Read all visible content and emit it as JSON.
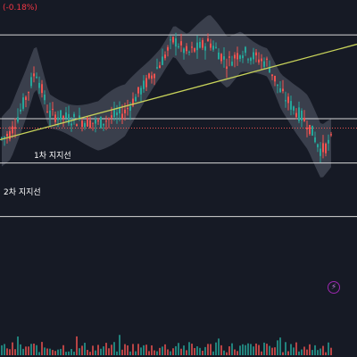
{
  "header": {
    "change_text": "(-0.18%)"
  },
  "chart_data": {
    "type": "candlestick",
    "description_note": "",
    "candles": [],
    "levels": [
      {
        "label": "",
        "value": 100
      },
      {
        "label": "1차 지지선",
        "value": 64
      },
      {
        "label": "2차 지지선",
        "value": 45
      },
      {
        "label": "",
        "value": 22
      }
    ],
    "trendline": {
      "label": "",
      "start": 55,
      "end": 96
    },
    "current_price_line": 60,
    "y_range": [
      0,
      115
    ],
    "volume": true,
    "band": true
  },
  "colors": {
    "up": "#26a69a",
    "down": "#ef5350",
    "band": "#5a5f6e",
    "level_line": "#d7d7d7",
    "trendline": "#c8d35a",
    "price_line": "#ef5350",
    "background": "#161a25"
  },
  "actions": {
    "flash_icon": "lightning-icon",
    "flash_symbol": "⚡"
  }
}
